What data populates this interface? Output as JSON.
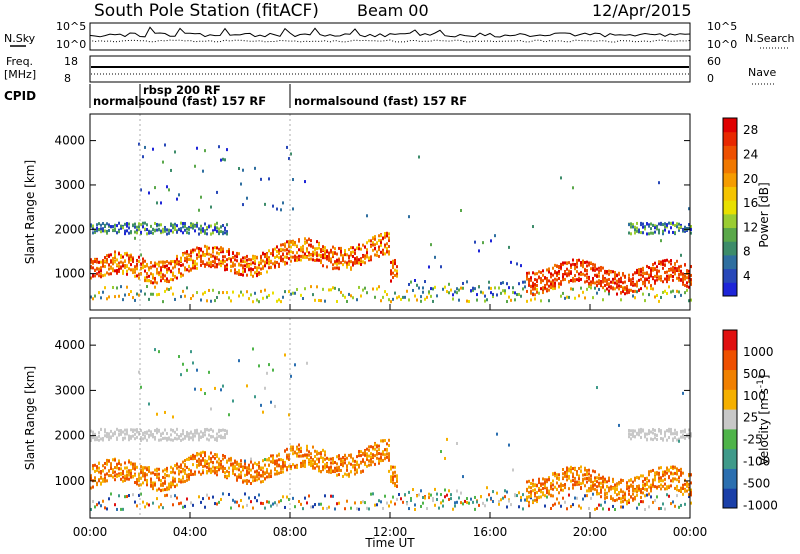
{
  "header": {
    "station": "South Pole Station (fitACF)",
    "beam": "Beam 00",
    "date": "12/Apr/2015"
  },
  "noise_panel": {
    "left_label": "N.Sky",
    "right_label": "N.Search",
    "left_ticks": [
      "10^5",
      "10^0"
    ],
    "right_ticks": [
      "10^5",
      "10^0"
    ]
  },
  "freq_panel": {
    "left_label_top": "Freq.",
    "left_label_bottom": "[MHz]",
    "left_ticks": [
      "18",
      "8"
    ],
    "right_ticks": [
      "60",
      "0"
    ],
    "right_label": "Nave"
  },
  "cpid_panel": {
    "label": "CPID",
    "segments": [
      {
        "label": "normalsound (fast) 157 RF",
        "start_hour": 0
      },
      {
        "label": "rbsp 200 RF",
        "start_hour": 2
      },
      {
        "label": "normalsound (fast) 157 RF",
        "start_hour": 8
      }
    ]
  },
  "chart_data": [
    {
      "type": "heatmap",
      "name": "power",
      "ylabel": "Slant Range [km]",
      "yticks": [
        1000,
        2000,
        3000,
        4000
      ],
      "ylim": [
        180,
        4600
      ],
      "xlim_hours": [
        0,
        24
      ],
      "colorbar": {
        "label": "Power [dB]",
        "ticks": [
          "4",
          "8",
          "12",
          "16",
          "20",
          "24",
          "28"
        ],
        "colors": [
          "#1e25d8",
          "#2848b8",
          "#2f6fa0",
          "#3d8c6a",
          "#5aa84a",
          "#9acd32",
          "#e8e000",
          "#f5c400",
          "#f59c00",
          "#f07800",
          "#ee5000",
          "#e82800",
          "#e00000"
        ]
      }
    },
    {
      "type": "heatmap",
      "name": "velocity",
      "ylabel": "Slant Range [km]",
      "yticks": [
        1000,
        2000,
        3000,
        4000
      ],
      "ylim": [
        180,
        4600
      ],
      "xlim_hours": [
        0,
        24
      ],
      "colorbar": {
        "label": "Velocity [m s^-1]",
        "ticks": [
          "1000",
          "500",
          "100",
          "25",
          "-25",
          "-100",
          "-500",
          "-1000"
        ],
        "colors": [
          "#1a3fa8",
          "#2b6fb0",
          "#3f9a8a",
          "#4fb44a",
          "#c8c8c8",
          "#f5b000",
          "#f08000",
          "#ee5000",
          "#e01010"
        ]
      }
    }
  ],
  "x_axis": {
    "ticks": [
      "00:00",
      "04:00",
      "08:00",
      "12:00",
      "16:00",
      "20:00",
      "00:00"
    ],
    "label": "Time UT"
  }
}
